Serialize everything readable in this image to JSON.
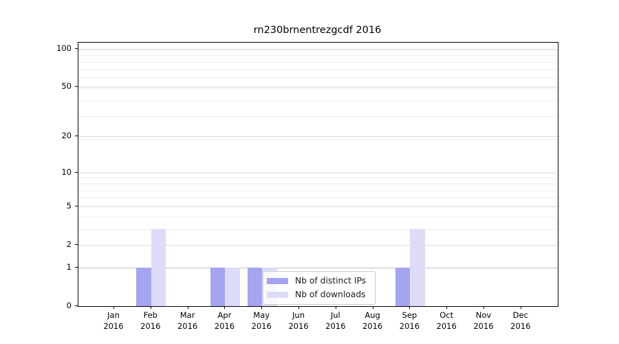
{
  "figure": {
    "title": "rn230brnentrezgcdf 2016"
  },
  "chart_data": {
    "type": "bar",
    "title": "rn230brnentrezgcdf 2016",
    "x_categories": [
      "Jan",
      "Feb",
      "Mar",
      "Apr",
      "May",
      "Jun",
      "Jul",
      "Aug",
      "Sep",
      "Oct",
      "Nov",
      "Dec"
    ],
    "x_sublabel": "2016",
    "series": [
      {
        "name": "Nb of distinct IPs",
        "color": "#a4a4f0",
        "values": [
          0,
          1,
          0,
          1,
          1,
          0,
          0,
          0,
          1,
          0,
          0,
          0
        ]
      },
      {
        "name": "Nb of downloads",
        "color": "#dcdcf9",
        "values": [
          0,
          3,
          0,
          1,
          1,
          0,
          0,
          0,
          3,
          0,
          0,
          0
        ]
      }
    ],
    "y_ticks": [
      0,
      1,
      2,
      5,
      10,
      20,
      50,
      100
    ],
    "y_scale": "log10(1+v)",
    "y_max": 112,
    "grid": "horizontal major and log-minor gridlines",
    "legend_position": "lower center"
  },
  "colors": {
    "bar_ips": "#a4a4f0",
    "bar_downloads": "#dcdcf9",
    "grid_major": "#d9d9d9",
    "grid_minor": "#ededed",
    "grid_level1": "#c0c0c0",
    "axis": "#000000",
    "text": "#000000",
    "legend_border": "#cccccc"
  }
}
